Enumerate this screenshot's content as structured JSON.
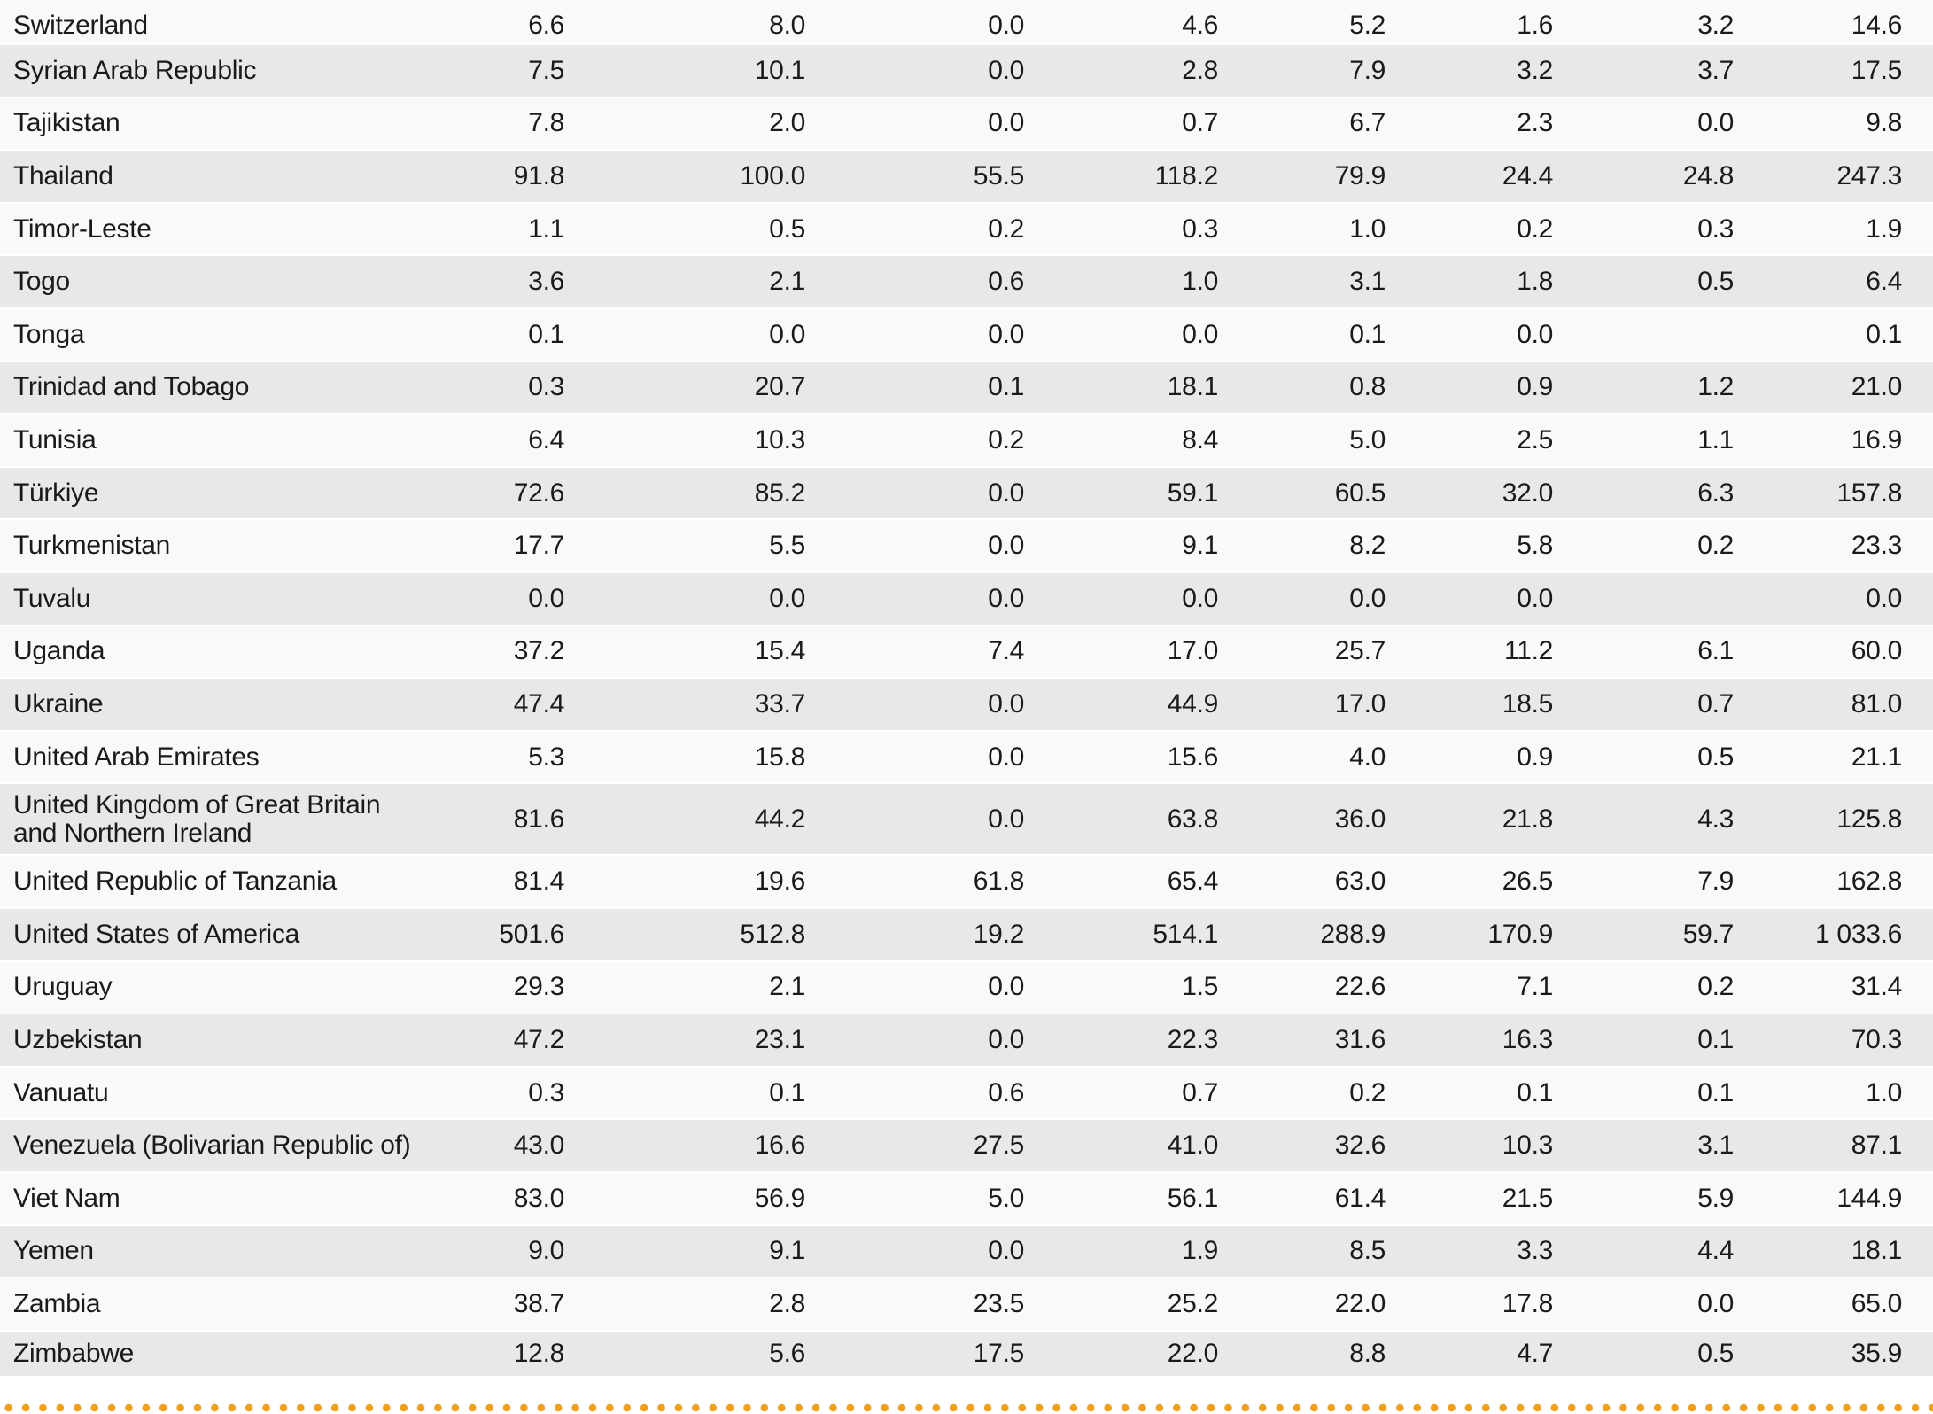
{
  "colors": {
    "row_light": "#f9f9f9",
    "row_dark": "#e8e8e8",
    "accent_dots": "#f0a020"
  },
  "rows": [
    {
      "name": "Switzerland",
      "values": [
        "6.6",
        "8.0",
        "0.0",
        "4.6",
        "5.2",
        "1.6",
        "3.2",
        "14.6"
      ]
    },
    {
      "name": "Syrian Arab Republic",
      "values": [
        "7.5",
        "10.1",
        "0.0",
        "2.8",
        "7.9",
        "3.2",
        "3.7",
        "17.5"
      ]
    },
    {
      "name": "Tajikistan",
      "values": [
        "7.8",
        "2.0",
        "0.0",
        "0.7",
        "6.7",
        "2.3",
        "0.0",
        "9.8"
      ]
    },
    {
      "name": "Thailand",
      "values": [
        "91.8",
        "100.0",
        "55.5",
        "118.2",
        "79.9",
        "24.4",
        "24.8",
        "247.3"
      ]
    },
    {
      "name": "Timor-Leste",
      "values": [
        "1.1",
        "0.5",
        "0.2",
        "0.3",
        "1.0",
        "0.2",
        "0.3",
        "1.9"
      ]
    },
    {
      "name": "Togo",
      "values": [
        "3.6",
        "2.1",
        "0.6",
        "1.0",
        "3.1",
        "1.8",
        "0.5",
        "6.4"
      ]
    },
    {
      "name": "Tonga",
      "values": [
        "0.1",
        "0.0",
        "0.0",
        "0.0",
        "0.1",
        "0.0",
        "",
        "0.1"
      ]
    },
    {
      "name": "Trinidad and Tobago",
      "values": [
        "0.3",
        "20.7",
        "0.1",
        "18.1",
        "0.8",
        "0.9",
        "1.2",
        "21.0"
      ]
    },
    {
      "name": "Tunisia",
      "values": [
        "6.4",
        "10.3",
        "0.2",
        "8.4",
        "5.0",
        "2.5",
        "1.1",
        "16.9"
      ]
    },
    {
      "name": "Türkiye",
      "values": [
        "72.6",
        "85.2",
        "0.0",
        "59.1",
        "60.5",
        "32.0",
        "6.3",
        "157.8"
      ]
    },
    {
      "name": "Turkmenistan",
      "values": [
        "17.7",
        "5.5",
        "0.0",
        "9.1",
        "8.2",
        "5.8",
        "0.2",
        "23.3"
      ]
    },
    {
      "name": "Tuvalu",
      "values": [
        "0.0",
        "0.0",
        "0.0",
        "0.0",
        "0.0",
        "0.0",
        "",
        "0.0"
      ]
    },
    {
      "name": "Uganda",
      "values": [
        "37.2",
        "15.4",
        "7.4",
        "17.0",
        "25.7",
        "11.2",
        "6.1",
        "60.0"
      ]
    },
    {
      "name": "Ukraine",
      "values": [
        "47.4",
        "33.7",
        "0.0",
        "44.9",
        "17.0",
        "18.5",
        "0.7",
        "81.0"
      ]
    },
    {
      "name": "United Arab Emirates",
      "values": [
        "5.3",
        "15.8",
        "0.0",
        "15.6",
        "4.0",
        "0.9",
        "0.5",
        "21.1"
      ]
    },
    {
      "name": "United Kingdom of Great Britain and Northern Ireland",
      "values": [
        "81.6",
        "44.2",
        "0.0",
        "63.8",
        "36.0",
        "21.8",
        "4.3",
        "125.8"
      ]
    },
    {
      "name": "United Republic of Tanzania",
      "values": [
        "81.4",
        "19.6",
        "61.8",
        "65.4",
        "63.0",
        "26.5",
        "7.9",
        "162.8"
      ]
    },
    {
      "name": "United States of America",
      "values": [
        "501.6",
        "512.8",
        "19.2",
        "514.1",
        "288.9",
        "170.9",
        "59.7",
        "1 033.6"
      ]
    },
    {
      "name": "Uruguay",
      "values": [
        "29.3",
        "2.1",
        "0.0",
        "1.5",
        "22.6",
        "7.1",
        "0.2",
        "31.4"
      ]
    },
    {
      "name": "Uzbekistan",
      "values": [
        "47.2",
        "23.1",
        "0.0",
        "22.3",
        "31.6",
        "16.3",
        "0.1",
        "70.3"
      ]
    },
    {
      "name": "Vanuatu",
      "values": [
        "0.3",
        "0.1",
        "0.6",
        "0.7",
        "0.2",
        "0.1",
        "0.1",
        "1.0"
      ]
    },
    {
      "name": "Venezuela (Bolivarian Republic of)",
      "values": [
        "43.0",
        "16.6",
        "27.5",
        "41.0",
        "32.6",
        "10.3",
        "3.1",
        "87.1"
      ]
    },
    {
      "name": "Viet Nam",
      "values": [
        "83.0",
        "56.9",
        "5.0",
        "56.1",
        "61.4",
        "21.5",
        "5.9",
        "144.9"
      ]
    },
    {
      "name": "Yemen",
      "values": [
        "9.0",
        "9.1",
        "0.0",
        "1.9",
        "8.5",
        "3.3",
        "4.4",
        "18.1"
      ]
    },
    {
      "name": "Zambia",
      "values": [
        "38.7",
        "2.8",
        "23.5",
        "25.2",
        "22.0",
        "17.8",
        "0.0",
        "65.0"
      ]
    },
    {
      "name": "Zimbabwe",
      "values": [
        "12.8",
        "5.6",
        "17.5",
        "22.0",
        "8.8",
        "4.7",
        "0.5",
        "35.9"
      ]
    }
  ]
}
